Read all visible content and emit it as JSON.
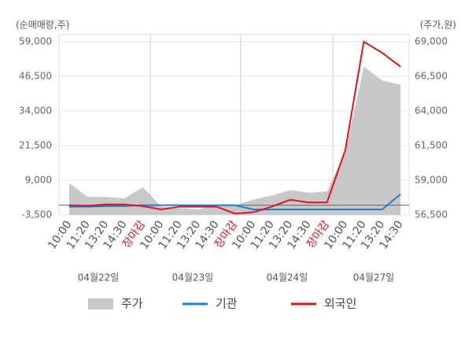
{
  "chart_data": {
    "type": "line",
    "y_axis_label": "(순매매량,주)",
    "y2_axis_label": "(주가,원)",
    "categories": [
      "10:00",
      "11:20",
      "13:20",
      "14:30",
      "장마감",
      "10:00",
      "11:20",
      "13:20",
      "14:30",
      "장마감",
      "10:00",
      "11:20",
      "13:20",
      "14:30",
      "장마감",
      "10:00",
      "11:20",
      "13:20",
      "14:30"
    ],
    "dates": [
      "04월22일",
      "04월23일",
      "04월24일",
      "04월27일"
    ],
    "ylim": [
      -3500,
      59000
    ],
    "yticks": [
      {
        "value": -3500,
        "label": "-3,500"
      },
      {
        "value": 9000,
        "label": "9,000"
      },
      {
        "value": 21500,
        "label": "21,500"
      },
      {
        "value": 34000,
        "label": "34,000"
      },
      {
        "value": 46500,
        "label": "46,500"
      },
      {
        "value": 59000,
        "label": "59,000"
      }
    ],
    "y2lim": [
      56500,
      69000
    ],
    "y2ticks": [
      {
        "value": 56500,
        "label": "56,500"
      },
      {
        "value": 59000,
        "label": "59,000"
      },
      {
        "value": 61500,
        "label": "61,500"
      },
      {
        "value": 64000,
        "label": "64,000"
      },
      {
        "value": 66500,
        "label": "66,500"
      },
      {
        "value": 69000,
        "label": "69,000"
      }
    ],
    "grid": true,
    "series": [
      {
        "name": "주가",
        "color": "#c8c8c8",
        "axis": "y2",
        "kind": "area",
        "values": [
          58800,
          57800,
          57800,
          57700,
          58500,
          57100,
          57000,
          56900,
          57200,
          57200,
          57600,
          57900,
          58300,
          58100,
          58200,
          61000,
          67200,
          66200,
          65900
        ]
      },
      {
        "name": "기관",
        "color": "#1a7fd4",
        "kind": "line",
        "values": [
          -500,
          -500,
          -300,
          -300,
          0,
          0,
          0,
          0,
          0,
          0,
          -1500,
          -1500,
          -1500,
          -1500,
          -1500,
          -1500,
          -1500,
          -1500,
          4000
        ]
      },
      {
        "name": "외국인",
        "color": "#e8101a",
        "kind": "line",
        "values": [
          0,
          -200,
          300,
          300,
          -300,
          -1500,
          -500,
          -500,
          -500,
          -3000,
          -2500,
          -500,
          2000,
          1000,
          1000,
          20000,
          59000,
          55000,
          50000
        ]
      }
    ]
  }
}
